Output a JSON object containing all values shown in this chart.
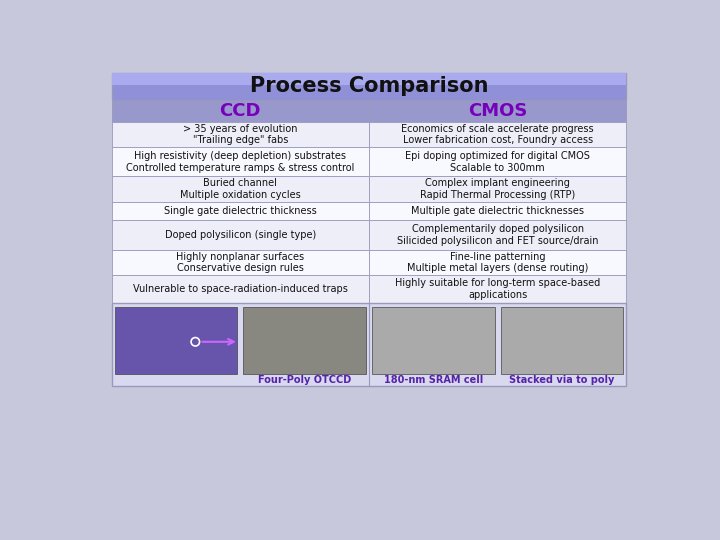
{
  "title": "Process Comparison",
  "col_headers": [
    "CCD",
    "CMOS"
  ],
  "rows": [
    [
      "> 35 years of evolution\n\"Trailing edge\" fabs",
      "Economics of scale accelerate progress\nLower fabrication cost, Foundry access"
    ],
    [
      "High resistivity (deep depletion) substrates\nControlled temperature ramps & stress control",
      "Epi doping optimized for digital CMOS\nScalable to 300mm"
    ],
    [
      "Buried channel\nMultiple oxidation cycles",
      "Complex implant engineering\nRapid Thermal Processing (RTP)"
    ],
    [
      "Single gate dielectric thickness",
      "Multiple gate dielectric thicknesses"
    ],
    [
      "Doped polysilicon (single type)",
      "Complementarily doped polysilicon\nSilicided polysilicon and FET source/drain"
    ],
    [
      "Highly nonplanar surfaces\nConservative design rules",
      "Fine-line patterning\nMultiple metal layers (dense routing)"
    ],
    [
      "Vulnerable to space-radiation-induced traps",
      "Highly suitable for long-term space-based\napplications"
    ]
  ],
  "image_captions": [
    "Four-Poly OTCCD",
    "180-nm SRAM cell",
    "Stacked via to poly"
  ],
  "title_bg": "#9090d8",
  "title_bg_grad_top": "#aaaaee",
  "header_bg": "#9898cc",
  "row_bg_light": "#eeeef8",
  "row_bg_white": "#f8f8ff",
  "image_section_bg": "#d8d8ee",
  "header_text_color": "#7700bb",
  "body_text_color": "#111111",
  "title_text_color": "#111111",
  "caption_text_color": "#5522aa",
  "border_color": "#9999bb",
  "outer_bg": "#c8c8dc",
  "img_colors": [
    "#6655aa",
    "#888880",
    "#aaaaaa",
    "#aaaaaa"
  ]
}
